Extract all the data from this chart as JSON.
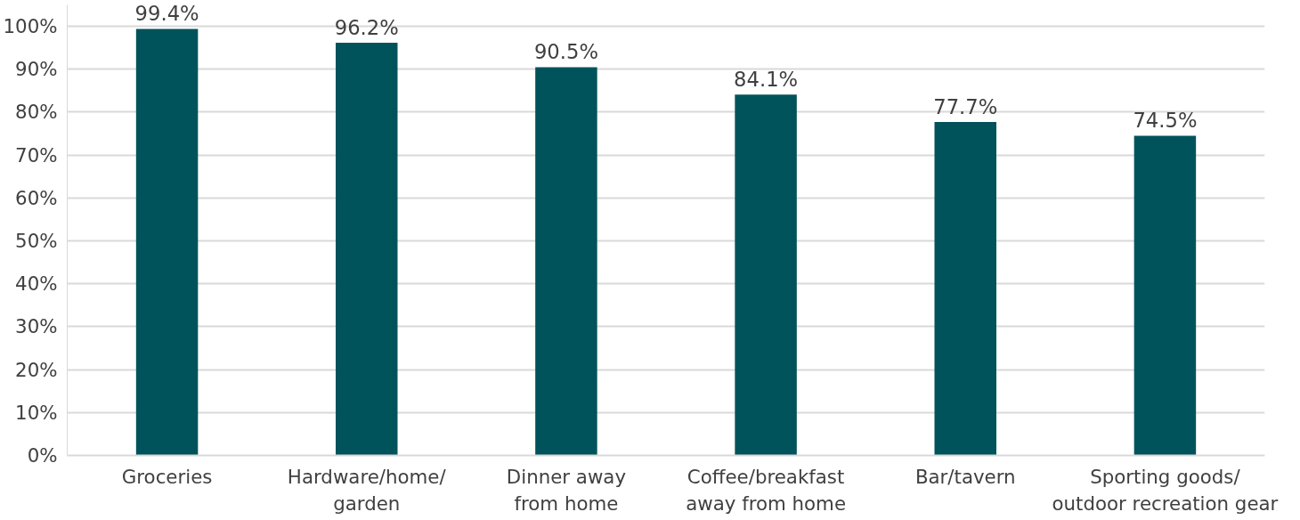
{
  "chart_data": {
    "type": "bar",
    "categories": [
      "Groceries",
      "Hardware/home/\ngarden",
      "Dinner away\nfrom home",
      "Coffee/breakfast\naway from home",
      "Bar/tavern",
      "Sporting goods/\noutdoor recreation gear"
    ],
    "values": [
      99.4,
      96.2,
      90.5,
      84.1,
      77.7,
      74.5
    ],
    "value_labels": [
      "99.4%",
      "96.2%",
      "90.5%",
      "84.1%",
      "77.7%",
      "74.5%"
    ],
    "color": "#00535b",
    "ylim": [
      0,
      105
    ],
    "yticks": [
      {
        "value": 0,
        "label": "0%"
      },
      {
        "value": 10,
        "label": "10%"
      },
      {
        "value": 20,
        "label": "20%"
      },
      {
        "value": 30,
        "label": "30%"
      },
      {
        "value": 40,
        "label": "40%"
      },
      {
        "value": 50,
        "label": "50%"
      },
      {
        "value": 60,
        "label": "60%"
      },
      {
        "value": 70,
        "label": "70%"
      },
      {
        "value": 80,
        "label": "80%"
      },
      {
        "value": 90,
        "label": "90%"
      },
      {
        "value": 100,
        "label": "100%"
      }
    ],
    "grid": "y"
  }
}
